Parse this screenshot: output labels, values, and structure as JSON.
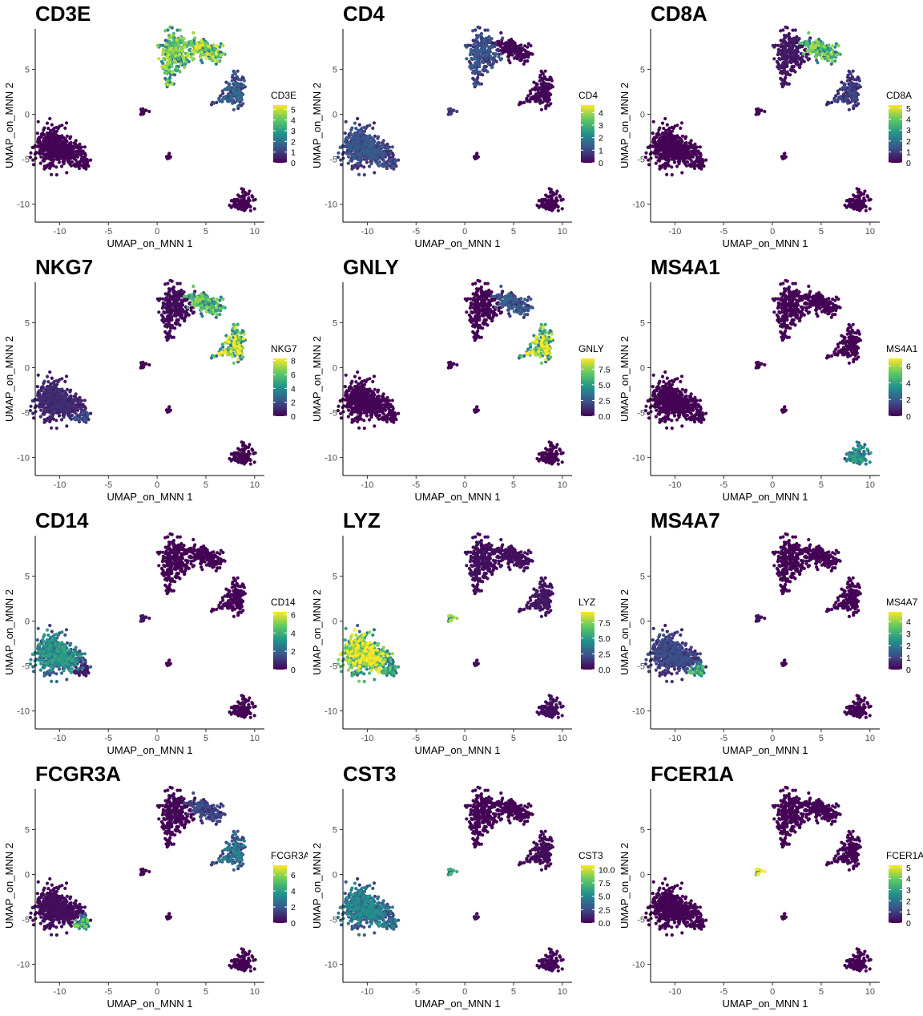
{
  "chart_data": [
    {
      "type": "scatter",
      "gene": "CD3E",
      "xlabel": "UMAP_on_MNN 1",
      "ylabel": "UMAP_on_MNN 2",
      "xlim": [
        -12.5,
        11
      ],
      "ylim": [
        -12,
        9.5
      ],
      "xticks": [
        -10,
        -5,
        0,
        5,
        10
      ],
      "yticks": [
        -10,
        -5,
        0,
        5
      ],
      "legend": {
        "title": "CD3E",
        "ticks": [
          "0",
          "1",
          "2",
          "3",
          "4",
          "5"
        ],
        "min": 0,
        "max": 5.4
      },
      "cluster_expression": {
        "Tcd4": 3.2,
        "Tcd8": 3.4,
        "NK": 1.3,
        "Bcell": 0.05,
        "CD14mono": 0.05,
        "FCGR3Amono": 0.05,
        "DC": 0.05,
        "Platelet": 0.05
      },
      "palette": [
        "#440154",
        "#3b528b",
        "#21918c",
        "#5ec962",
        "#fde725"
      ]
    },
    {
      "type": "scatter",
      "gene": "CD4",
      "xlabel": "UMAP_on_MNN 1",
      "ylabel": "UMAP_on_MNN 2",
      "xlim": [
        -12.5,
        11
      ],
      "ylim": [
        -12,
        9.5
      ],
      "xticks": [
        -10,
        -5,
        0,
        5,
        10
      ],
      "yticks": [
        -10,
        -5,
        0,
        5
      ],
      "legend": {
        "title": "CD4",
        "ticks": [
          "0",
          "1",
          "2",
          "3",
          "4"
        ],
        "min": 0,
        "max": 4.6
      },
      "cluster_expression": {
        "Tcd4": 0.9,
        "Tcd8": 0.1,
        "NK": 0.1,
        "Bcell": 0.05,
        "CD14mono": 0.9,
        "FCGR3Amono": 0.8,
        "DC": 0.6,
        "Platelet": 0.05
      },
      "palette": [
        "#440154",
        "#3b528b",
        "#21918c",
        "#5ec962",
        "#fde725"
      ]
    },
    {
      "type": "scatter",
      "gene": "CD8A",
      "xlabel": "UMAP_on_MNN 1",
      "ylabel": "UMAP_on_MNN 2",
      "xlim": [
        -12.5,
        11
      ],
      "ylim": [
        -12,
        9.5
      ],
      "xticks": [
        -10,
        -5,
        0,
        5,
        10
      ],
      "yticks": [
        -10,
        -5,
        0,
        5
      ],
      "legend": {
        "title": "CD8A",
        "ticks": [
          "0",
          "1",
          "2",
          "3",
          "4",
          "5"
        ],
        "min": 0,
        "max": 5.3
      },
      "cluster_expression": {
        "Tcd4": 0.3,
        "Tcd8": 3.0,
        "NK": 0.8,
        "Bcell": 0.05,
        "CD14mono": 0.05,
        "FCGR3Amono": 0.05,
        "DC": 0.05,
        "Platelet": 0.05
      },
      "palette": [
        "#440154",
        "#3b528b",
        "#21918c",
        "#5ec962",
        "#fde725"
      ]
    },
    {
      "type": "scatter",
      "gene": "NKG7",
      "xlabel": "UMAP_on_MNN 1",
      "ylabel": "UMAP_on_MNN 2",
      "xlim": [
        -12.5,
        11
      ],
      "ylim": [
        -12,
        9.5
      ],
      "xticks": [
        -10,
        -5,
        0,
        5,
        10
      ],
      "yticks": [
        -10,
        -5,
        0,
        5
      ],
      "legend": {
        "title": "NKG7",
        "ticks": [
          "0",
          "2",
          "4",
          "6",
          "8"
        ],
        "min": 0,
        "max": 8.3
      },
      "cluster_expression": {
        "Tcd4": 0.2,
        "Tcd8": 4.5,
        "NK": 5.8,
        "Bcell": 0.05,
        "CD14mono": 0.8,
        "FCGR3Amono": 1.5,
        "DC": 0.1,
        "Platelet": 0.1
      },
      "palette": [
        "#440154",
        "#3b528b",
        "#21918c",
        "#5ec962",
        "#fde725"
      ]
    },
    {
      "type": "scatter",
      "gene": "GNLY",
      "xlabel": "UMAP_on_MNN 1",
      "ylabel": "UMAP_on_MNN 2",
      "xlim": [
        -12.5,
        11
      ],
      "ylim": [
        -12,
        9.5
      ],
      "xticks": [
        -10,
        -5,
        0,
        5,
        10
      ],
      "yticks": [
        -10,
        -5,
        0,
        5
      ],
      "legend": {
        "title": "GNLY",
        "ticks": [
          "0.0",
          "2.5",
          "5.0",
          "7.5"
        ],
        "tickvals": [
          0,
          2.5,
          5,
          7.5
        ],
        "min": 0,
        "max": 9.2
      },
      "cluster_expression": {
        "Tcd4": 0.1,
        "Tcd8": 2.0,
        "NK": 6.5,
        "Bcell": 0.05,
        "CD14mono": 0.1,
        "FCGR3Amono": 0.1,
        "DC": 0.05,
        "Platelet": 0.05
      },
      "palette": [
        "#440154",
        "#3b528b",
        "#21918c",
        "#5ec962",
        "#fde725"
      ]
    },
    {
      "type": "scatter",
      "gene": "MS4A1",
      "xlabel": "UMAP_on_MNN 1",
      "ylabel": "UMAP_on_MNN 2",
      "xlim": [
        -12.5,
        11
      ],
      "ylim": [
        -12,
        9.5
      ],
      "xticks": [
        -10,
        -5,
        0,
        5,
        10
      ],
      "yticks": [
        -10,
        -5,
        0,
        5
      ],
      "legend": {
        "title": "MS4A1",
        "ticks": [
          "0",
          "2",
          "4",
          "6"
        ],
        "min": 0,
        "max": 6.9
      },
      "cluster_expression": {
        "Tcd4": 0.05,
        "Tcd8": 0.05,
        "NK": 0.05,
        "Bcell": 2.6,
        "CD14mono": 0.05,
        "FCGR3Amono": 0.05,
        "DC": 0.05,
        "Platelet": 0.05
      },
      "palette": [
        "#440154",
        "#3b528b",
        "#21918c",
        "#5ec962",
        "#fde725"
      ]
    },
    {
      "type": "scatter",
      "gene": "CD14",
      "xlabel": "UMAP_on_MNN 1",
      "ylabel": "UMAP_on_MNN 2",
      "xlim": [
        -12.5,
        11
      ],
      "ylim": [
        -12,
        9.5
      ],
      "xticks": [
        -10,
        -5,
        0,
        5,
        10
      ],
      "yticks": [
        -10,
        -5,
        0,
        5
      ],
      "legend": {
        "title": "CD14",
        "ticks": [
          "0",
          "2",
          "4",
          "6"
        ],
        "min": 0,
        "max": 6.3
      },
      "cluster_expression": {
        "Tcd4": 0.05,
        "Tcd8": 0.05,
        "NK": 0.05,
        "Bcell": 0.05,
        "CD14mono": 2.4,
        "FCGR3Amono": 0.4,
        "DC": 0.3,
        "Platelet": 0.05
      },
      "palette": [
        "#440154",
        "#3b528b",
        "#21918c",
        "#5ec962",
        "#fde725"
      ]
    },
    {
      "type": "scatter",
      "gene": "LYZ",
      "xlabel": "UMAP_on_MNN 1",
      "ylabel": "UMAP_on_MNN 2",
      "xlim": [
        -12.5,
        11
      ],
      "ylim": [
        -12,
        9.5
      ],
      "xticks": [
        -10,
        -5,
        0,
        5,
        10
      ],
      "yticks": [
        -10,
        -5,
        0,
        5
      ],
      "legend": {
        "title": "LYZ",
        "ticks": [
          "0.0",
          "2.5",
          "5.0",
          "7.5"
        ],
        "tickvals": [
          0,
          2.5,
          5,
          7.5
        ],
        "min": 0,
        "max": 9.2
      },
      "cluster_expression": {
        "Tcd4": 0.3,
        "Tcd8": 0.3,
        "NK": 0.5,
        "Bcell": 0.3,
        "CD14mono": 6.3,
        "FCGR3Amono": 4.0,
        "DC": 5.5,
        "Platelet": 0.3
      },
      "palette": [
        "#440154",
        "#3b528b",
        "#21918c",
        "#5ec962",
        "#fde725"
      ]
    },
    {
      "type": "scatter",
      "gene": "MS4A7",
      "xlabel": "UMAP_on_MNN 1",
      "ylabel": "UMAP_on_MNN 2",
      "xlim": [
        -12.5,
        11
      ],
      "ylim": [
        -12,
        9.5
      ],
      "xticks": [
        -10,
        -5,
        0,
        5,
        10
      ],
      "yticks": [
        -10,
        -5,
        0,
        5
      ],
      "legend": {
        "title": "MS4A7",
        "ticks": [
          "0",
          "1",
          "2",
          "3",
          "4"
        ],
        "min": 0,
        "max": 4.8
      },
      "cluster_expression": {
        "Tcd4": 0.05,
        "Tcd8": 0.05,
        "NK": 0.05,
        "Bcell": 0.05,
        "CD14mono": 0.8,
        "FCGR3Amono": 2.3,
        "DC": 0.2,
        "Platelet": 0.05
      },
      "palette": [
        "#440154",
        "#3b528b",
        "#21918c",
        "#5ec962",
        "#fde725"
      ]
    },
    {
      "type": "scatter",
      "gene": "FCGR3A",
      "xlabel": "UMAP_on_MNN 1",
      "ylabel": "UMAP_on_MNN 2",
      "xlim": [
        -12.5,
        11
      ],
      "ylim": [
        -12,
        9.5
      ],
      "xticks": [
        -10,
        -5,
        0,
        5,
        10
      ],
      "yticks": [
        -10,
        -5,
        0,
        5
      ],
      "legend": {
        "title": "FCGR3A",
        "ticks": [
          "0",
          "2",
          "4",
          "6"
        ],
        "min": 0,
        "max": 7.2
      },
      "cluster_expression": {
        "Tcd4": 0.1,
        "Tcd8": 1.2,
        "NK": 2.2,
        "Bcell": 0.05,
        "CD14mono": 0.2,
        "FCGR3Amono": 3.8,
        "DC": 0.1,
        "Platelet": 0.1
      },
      "palette": [
        "#440154",
        "#3b528b",
        "#21918c",
        "#5ec962",
        "#fde725"
      ]
    },
    {
      "type": "scatter",
      "gene": "CST3",
      "xlabel": "UMAP_on_MNN 1",
      "ylabel": "UMAP_on_MNN 2",
      "xlim": [
        -12.5,
        11
      ],
      "ylim": [
        -12,
        9.5
      ],
      "xticks": [
        -10,
        -5,
        0,
        5,
        10
      ],
      "yticks": [
        -10,
        -5,
        0,
        5
      ],
      "legend": {
        "title": "CST3",
        "ticks": [
          "0.0",
          "2.5",
          "5.0",
          "7.5",
          "10.0"
        ],
        "tickvals": [
          0,
          2.5,
          5,
          7.5,
          10
        ],
        "min": 0,
        "max": 10.8
      },
      "cluster_expression": {
        "Tcd4": 0.1,
        "Tcd8": 0.1,
        "NK": 0.3,
        "Bcell": 0.2,
        "CD14mono": 3.6,
        "FCGR3Amono": 3.2,
        "DC": 4.8,
        "Platelet": 0.5
      },
      "palette": [
        "#440154",
        "#3b528b",
        "#21918c",
        "#5ec962",
        "#fde725"
      ]
    },
    {
      "type": "scatter",
      "gene": "FCER1A",
      "xlabel": "UMAP_on_MNN 1",
      "ylabel": "UMAP_on_MNN 2",
      "xlim": [
        -12.5,
        11
      ],
      "ylim": [
        -12,
        9.5
      ],
      "xticks": [
        -10,
        -5,
        0,
        5,
        10
      ],
      "yticks": [
        -10,
        -5,
        0,
        5
      ],
      "legend": {
        "title": "FCER1A",
        "ticks": [
          "0",
          "1",
          "2",
          "3",
          "4",
          "5"
        ],
        "min": 0,
        "max": 5.2
      },
      "cluster_expression": {
        "Tcd4": 0.05,
        "Tcd8": 0.05,
        "NK": 0.05,
        "Bcell": 0.05,
        "CD14mono": 0.05,
        "FCGR3Amono": 0.05,
        "DC": 3.8,
        "Platelet": 0.05
      },
      "palette": [
        "#440154",
        "#3b528b",
        "#21918c",
        "#5ec962",
        "#fde725"
      ]
    }
  ]
}
